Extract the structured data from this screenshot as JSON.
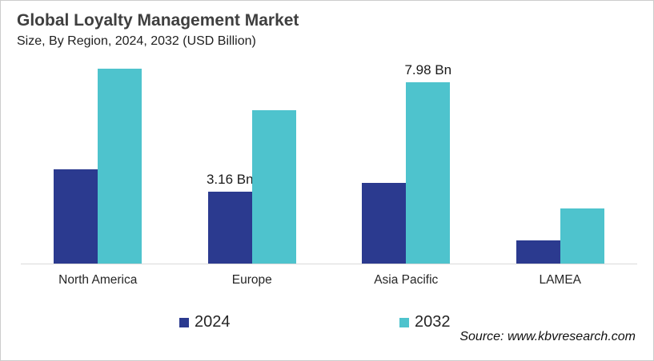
{
  "header": {
    "title": "Global Loyalty Management Market",
    "subtitle": "Size, By Region, 2024, 2032 (USD Billion)"
  },
  "source": "Source: www.kbvresearch.com",
  "legend": {
    "item_2024": "2024",
    "item_2032": "2032"
  },
  "chart_data": {
    "type": "bar",
    "title": "Global Loyalty Management Market",
    "subtitle": "Size, By Region, 2024, 2032 (USD Billion)",
    "unit": "USD Billion",
    "categories": [
      "North America",
      "Europe",
      "Asia Pacific",
      "LAMEA"
    ],
    "series": [
      {
        "name": "2024",
        "color": "#2B3A8F",
        "values": [
          4.13,
          3.16,
          3.55,
          1.02
        ],
        "labels": [
          null,
          "3.16 Bn",
          null,
          null
        ]
      },
      {
        "name": "2032",
        "color": "#4EC3CD",
        "values": [
          8.57,
          6.75,
          7.98,
          2.42
        ],
        "labels": [
          null,
          null,
          "7.98 Bn",
          null
        ]
      }
    ],
    "ylim": [
      0,
      9.1
    ],
    "grid": false,
    "axis_line_color": "#d9d9d9",
    "legend_position": "bottom"
  }
}
